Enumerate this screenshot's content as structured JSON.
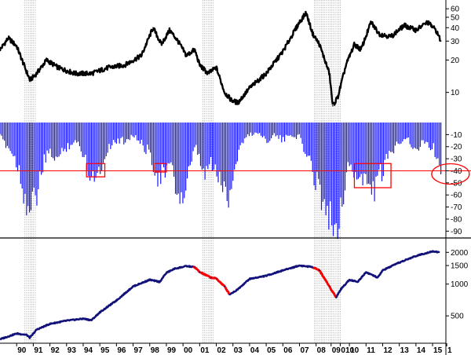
{
  "colors": {
    "price_line": "#000000",
    "bars": "#1010ff",
    "index_line": "#12127a",
    "decline_highlight": "#ff0000",
    "threshold_line": "#ff0000",
    "annotation_boxes": "#ff0000",
    "recession_shading": "#9a9a9a"
  },
  "chart_data": [
    {
      "type": "line",
      "panel": "top",
      "yscale": "log",
      "ylim": [
        6,
        70
      ],
      "ytick_labels": [
        "60",
        "50",
        "40",
        "30",
        "20",
        "10"
      ],
      "ytick_values": [
        60,
        50,
        40,
        30,
        20,
        10
      ],
      "x": [
        1989.0,
        1989.5,
        1990.0,
        1990.5,
        1990.8,
        1991.2,
        1991.8,
        1992.5,
        1993.5,
        1994.5,
        1995.5,
        1996.5,
        1997.5,
        1998.2,
        1998.7,
        1999.2,
        1999.7,
        2000.2,
        2000.7,
        2001.0,
        2001.5,
        2002.0,
        2002.5,
        2002.9,
        2003.3,
        2004.0,
        2005.0,
        2006.0,
        2007.0,
        2007.4,
        2007.8,
        2008.2,
        2008.8,
        2009.0,
        2009.3,
        2009.8,
        2010.3,
        2010.7,
        2011.3,
        2011.8,
        2012.5,
        2013.3,
        2014.0,
        2014.7,
        2015.2,
        2015.5
      ],
      "values": [
        25,
        32,
        27,
        17,
        13,
        15,
        20,
        17,
        15,
        15,
        17,
        18,
        22,
        40,
        28,
        38,
        30,
        22,
        25,
        18,
        15,
        17,
        10,
        8.5,
        8,
        11,
        15,
        24,
        45,
        55,
        35,
        28,
        15,
        7.5,
        9,
        18,
        28,
        25,
        45,
        35,
        33,
        42,
        38,
        45,
        38,
        30
      ]
    },
    {
      "type": "bar",
      "panel": "middle",
      "ylim": [
        -95,
        0
      ],
      "ytick_labels": [
        "-10",
        "-20",
        "-30",
        "-40",
        "-50",
        "-60",
        "-70",
        "-80",
        "-90"
      ],
      "ytick_values": [
        -10,
        -20,
        -30,
        -40,
        -50,
        -60,
        -70,
        -80,
        -90
      ],
      "threshold": -40,
      "x": [
        1989.0,
        1989.5,
        1990.0,
        1990.4,
        1990.8,
        1991.2,
        1991.6,
        1992.0,
        1992.5,
        1993.0,
        1993.5,
        1994.0,
        1994.5,
        1995.0,
        1995.5,
        1996.0,
        1996.5,
        1997.0,
        1997.5,
        1998.0,
        1998.5,
        1998.8,
        1999.2,
        1999.6,
        2000.0,
        2000.4,
        2000.8,
        2001.2,
        2001.6,
        2002.0,
        2002.4,
        2002.8,
        2003.2,
        2003.6,
        2004.0,
        2004.5,
        2005.0,
        2005.5,
        2006.0,
        2006.5,
        2007.0,
        2007.5,
        2007.8,
        2008.2,
        2008.6,
        2009.0,
        2009.3,
        2009.6,
        2010.0,
        2010.5,
        2011.0,
        2011.5,
        2012.0,
        2012.5,
        2013.0,
        2013.5,
        2014.0,
        2014.5,
        2015.0,
        2015.3,
        2015.5
      ],
      "values": [
        -12,
        -20,
        -32,
        -55,
        -75,
        -60,
        -35,
        -25,
        -30,
        -20,
        -15,
        -25,
        -45,
        -40,
        -20,
        -15,
        -15,
        -10,
        -18,
        -25,
        -45,
        -42,
        -35,
        -55,
        -65,
        -40,
        -20,
        -45,
        -35,
        -40,
        -55,
        -60,
        -30,
        -15,
        -10,
        -8,
        -15,
        -10,
        -15,
        -10,
        -12,
        -30,
        -40,
        -55,
        -70,
        -85,
        -80,
        -60,
        -35,
        -45,
        -50,
        -55,
        -40,
        -25,
        -15,
        -12,
        -25,
        -15,
        -20,
        -30,
        -38
      ]
    },
    {
      "type": "line",
      "panel": "bottom",
      "yscale": "log",
      "ylim": [
        280,
        2600
      ],
      "ytick_labels": [
        "2000",
        "1500",
        "1000",
        "500"
      ],
      "ytick_values": [
        2000,
        1500,
        1000,
        500
      ],
      "x": [
        1989.0,
        1990.0,
        1990.6,
        1990.8,
        1991.2,
        1992.0,
        1993.0,
        1994.0,
        1994.5,
        1995.0,
        1996.0,
        1997.0,
        1998.0,
        1998.6,
        1999.0,
        1999.5,
        2000.2,
        2000.7,
        2001.0,
        2001.7,
        2002.0,
        2002.5,
        2002.8,
        2003.2,
        2004.0,
        2005.0,
        2006.0,
        2007.0,
        2007.8,
        2008.2,
        2008.8,
        2009.2,
        2009.5,
        2010.0,
        2010.5,
        2011.0,
        2011.7,
        2012.0,
        2013.0,
        2014.0,
        2015.0,
        2015.4
      ],
      "values": [
        300,
        340,
        330,
        310,
        370,
        420,
        450,
        470,
        455,
        540,
        700,
        950,
        1100,
        1050,
        1280,
        1400,
        1480,
        1450,
        1300,
        1150,
        1130,
        950,
        800,
        870,
        1120,
        1200,
        1350,
        1500,
        1450,
        1350,
        950,
        750,
        900,
        1100,
        1050,
        1300,
        1150,
        1350,
        1600,
        1850,
        2050,
        2000
      ],
      "highlight_ranges": [
        [
          2000.6,
          2002.8
        ],
        [
          2007.8,
          2009.2
        ]
      ]
    }
  ],
  "x_axis": {
    "range": [
      1989.0,
      2015.8
    ],
    "tick_labels": [
      "90",
      "91",
      "92",
      "93",
      "94",
      "95",
      "96",
      "97",
      "98",
      "99",
      "00",
      "01",
      "02",
      "03",
      "04",
      "05",
      "06",
      "07",
      "08",
      "09",
      "010",
      "10",
      "11",
      "12",
      "13",
      "14",
      "15",
      "1"
    ],
    "tick_positions": [
      1990.0,
      1991.0,
      1992.0,
      1993.0,
      1994.0,
      1995.0,
      1996.0,
      1997.0,
      1998.0,
      1999.0,
      2000.0,
      2001.0,
      2002.0,
      2003.0,
      2004.0,
      2005.0,
      2006.0,
      2007.0,
      2008.0,
      2008.9,
      2009.45,
      2010.0,
      2011.0,
      2012.0,
      2013.0,
      2014.0,
      2015.0,
      2015.85
    ]
  },
  "recession_periods": [
    [
      1990.5,
      1991.2
    ],
    [
      2001.2,
      2001.9
    ],
    [
      2007.9,
      2009.5
    ]
  ],
  "annotation_boxes": [
    {
      "x": [
        1994.2,
        1995.3
      ],
      "y": [
        -34,
        -45
      ]
    },
    {
      "x": [
        1998.3,
        1999.0
      ],
      "y": [
        -34,
        -41
      ]
    },
    {
      "x": [
        2010.3,
        2012.5
      ],
      "y": [
        -34,
        -54
      ]
    }
  ],
  "annotation_ellipse": {
    "x": 2015.7,
    "y": -40
  }
}
